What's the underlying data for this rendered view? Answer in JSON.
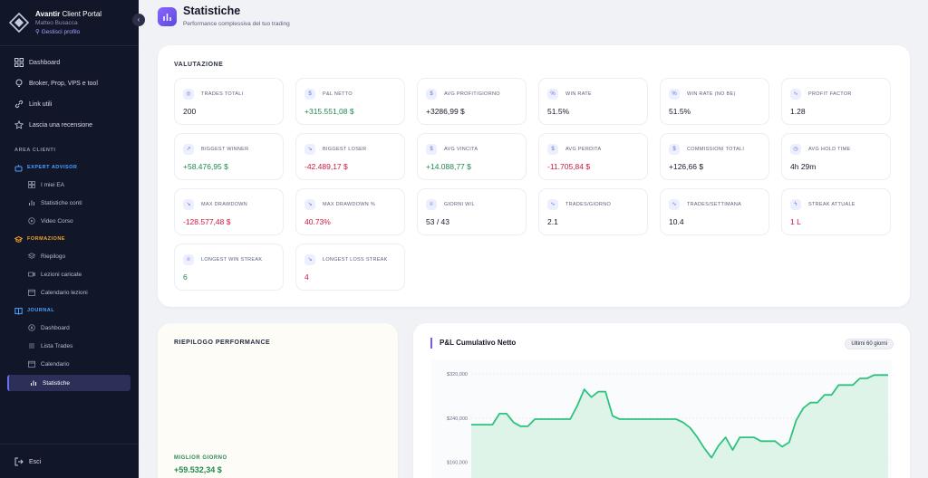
{
  "sidebar": {
    "brand": {
      "name": "Avantir",
      "suffix": " Client Portal",
      "user": "Matteo Busacca",
      "profile_link": "Gestisci profilo"
    },
    "nav": [
      {
        "label": "Dashboard",
        "icon": "grid-icon"
      },
      {
        "label": "Broker, Prop, VPS e tool",
        "icon": "lightbulb-icon"
      },
      {
        "label": "Link utili",
        "icon": "link-icon"
      },
      {
        "label": "Lascia una recensione",
        "icon": "star-icon"
      }
    ],
    "section_label": "AREA CLIENTI",
    "groups": [
      {
        "label": "EXPERT ADVISOR",
        "color": "#4aa3ff",
        "items": [
          "I miei EA",
          "Statistiche conti",
          "Video Corso"
        ]
      },
      {
        "label": "FORMAZIONE",
        "color": "#f5a623",
        "items": [
          "Riepilogo",
          "Lezioni caricate",
          "Calendario lezioni"
        ]
      },
      {
        "label": "JOURNAL",
        "color": "#4aa3ff",
        "items": [
          "Dashboard",
          "Lista Trades",
          "Calendario",
          "Statistiche"
        ]
      }
    ],
    "active_item": "Statistiche",
    "logout": "Esci"
  },
  "header": {
    "title": "Statistiche",
    "subtitle": "Performance complessiva del tuo trading"
  },
  "valutazione": {
    "title": "VALUTAZIONE",
    "stats": [
      {
        "label": "TRADES TOTALI",
        "value": "200",
        "tone": "",
        "icon": "target-icon"
      },
      {
        "label": "P&L NETTO",
        "value": "+315.551,08 $",
        "tone": "pos",
        "icon": "dollar-icon"
      },
      {
        "label": "AVG PROFIT/GIORNO",
        "value": "+3286,99 $",
        "tone": "",
        "icon": "dollar-icon"
      },
      {
        "label": "WIN RATE",
        "value": "51.5%",
        "tone": "",
        "icon": "percent-icon"
      },
      {
        "label": "WIN RATE (NO BE)",
        "value": "51.5%",
        "tone": "",
        "icon": "percent-icon"
      },
      {
        "label": "PROFIT FACTOR",
        "value": "1.28",
        "tone": "",
        "icon": "activity-icon"
      },
      {
        "label": "BIGGEST WINNER",
        "value": "+58.476,95 $",
        "tone": "pos",
        "icon": "arrow-up-right-icon"
      },
      {
        "label": "BIGGEST LOSER",
        "value": "-42.489,17 $",
        "tone": "neg",
        "icon": "arrow-down-right-icon"
      },
      {
        "label": "AVG VINCITA",
        "value": "+14.088,77 $",
        "tone": "pos",
        "icon": "dollar-icon"
      },
      {
        "label": "AVG PERDITA",
        "value": "-11.705,84 $",
        "tone": "neg",
        "icon": "dollar-icon"
      },
      {
        "label": "COMMISSIONI TOTALI",
        "value": "+126,66 $",
        "tone": "",
        "icon": "dollar-icon"
      },
      {
        "label": "AVG HOLD TIME",
        "value": "4h 29m",
        "tone": "",
        "icon": "clock-icon"
      },
      {
        "label": "MAX DRAWDOWN",
        "value": "-128.577,48 $",
        "tone": "neg",
        "icon": "trending-down-icon"
      },
      {
        "label": "MAX DRAWDOWN %",
        "value": "40.73%",
        "tone": "neg",
        "icon": "trending-down-icon"
      },
      {
        "label": "GIORNI W/L",
        "value": "53 / 43",
        "tone": "",
        "icon": "trophy-icon"
      },
      {
        "label": "TRADES/GIORNO",
        "value": "2.1",
        "tone": "",
        "icon": "activity-icon"
      },
      {
        "label": "TRADES/SETTIMANA",
        "value": "10.4",
        "tone": "",
        "icon": "activity-icon"
      },
      {
        "label": "STREAK ATTUALE",
        "value": "1 L",
        "tone": "neg",
        "icon": "bolt-icon"
      },
      {
        "label": "LONGEST WIN STREAK",
        "value": "6",
        "tone": "pos",
        "icon": "trophy-icon"
      },
      {
        "label": "LONGEST LOSS STREAK",
        "value": "4",
        "tone": "neg",
        "icon": "trending-down-icon"
      }
    ]
  },
  "riepilogo": {
    "title": "RIEPILOGO PERFORMANCE",
    "best_day_label": "MIGLIOR GIORNO",
    "best_day_value": "+59.532,34 $"
  },
  "pnl_chart": {
    "title": "P&L Cumulativo Netto",
    "range_badge": "Ultimi 60 giorni"
  },
  "chart_data": {
    "type": "area",
    "title": "P&L Cumulativo Netto",
    "xlabel": "",
    "ylabel": "",
    "y_ticks": [
      "$320,000",
      "$240,000",
      "$160,000"
    ],
    "y_tick_values": [
      320000,
      240000,
      160000
    ],
    "ylim": [
      100000,
      330000
    ],
    "grid": true,
    "color": "#2ec27e",
    "x": [
      1,
      2,
      3,
      4,
      5,
      6,
      7,
      8,
      9,
      10,
      11,
      12,
      13,
      14,
      15,
      16,
      17,
      18,
      19,
      20,
      21,
      22,
      23,
      24,
      25,
      26,
      27,
      28,
      29,
      30,
      31,
      32,
      33,
      34,
      35,
      36,
      37,
      38,
      39,
      40,
      41,
      42,
      43,
      44,
      45,
      46,
      47,
      48,
      49,
      50,
      51,
      52,
      53,
      54,
      55,
      56,
      57,
      58,
      59,
      60
    ],
    "values": [
      228000,
      228000,
      228000,
      228000,
      248000,
      248000,
      232000,
      225000,
      225000,
      238000,
      238000,
      238000,
      238000,
      238000,
      238000,
      262000,
      292000,
      278000,
      288000,
      288000,
      244000,
      238000,
      238000,
      238000,
      238000,
      238000,
      238000,
      238000,
      238000,
      238000,
      232000,
      222000,
      205000,
      185000,
      168000,
      190000,
      205000,
      182000,
      205000,
      205000,
      205000,
      198000,
      198000,
      198000,
      188000,
      196000,
      236000,
      258000,
      268000,
      268000,
      282000,
      282000,
      300000,
      300000,
      300000,
      312000,
      312000,
      318000,
      318000,
      318000
    ]
  }
}
